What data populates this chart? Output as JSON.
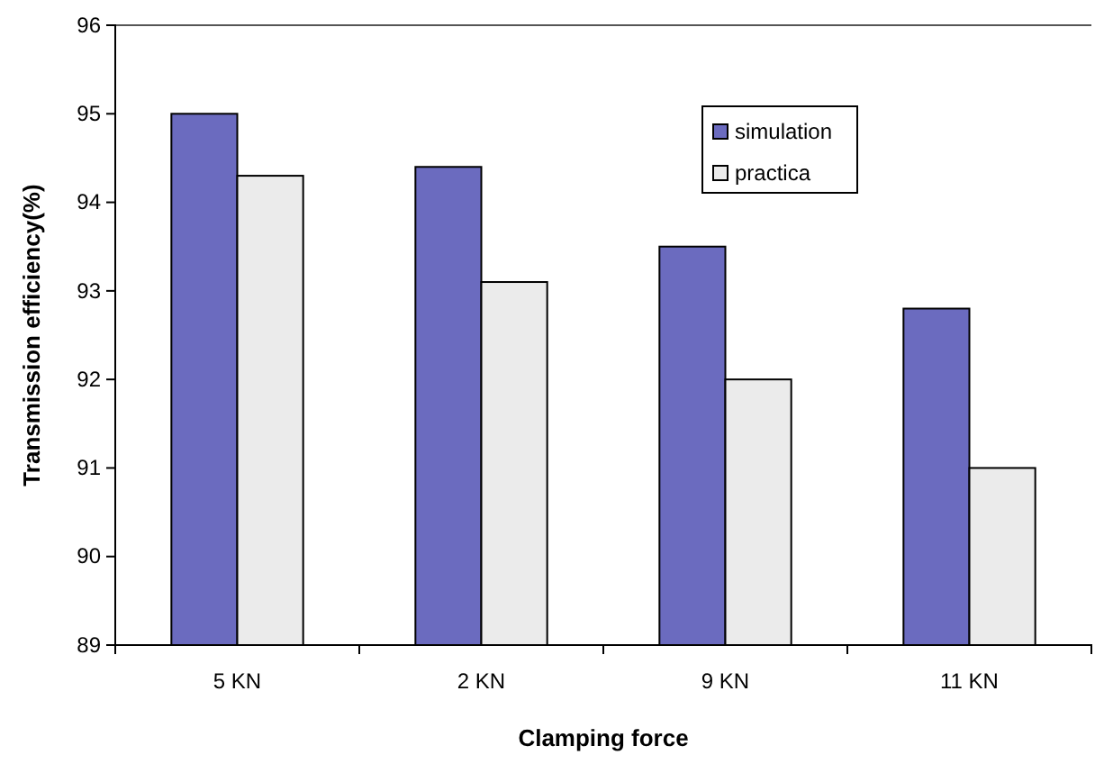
{
  "chart_data": {
    "type": "bar",
    "xlabel": "Clamping force",
    "ylabel": "Transmission efficiency(%)",
    "categories": [
      "5 KN",
      "2 KN",
      "9 KN",
      "11 KN"
    ],
    "series": [
      {
        "name": "simulation",
        "color": "#6b6bbf",
        "values": [
          95,
          94.4,
          93.5,
          92.8
        ]
      },
      {
        "name": "practica",
        "color": "#ebebeb",
        "values": [
          94.3,
          93.1,
          92,
          91
        ]
      }
    ],
    "ylim": [
      89,
      96
    ],
    "yticks": [
      89,
      90,
      91,
      92,
      93,
      94,
      95,
      96
    ],
    "grid": false,
    "legend": "top right"
  }
}
